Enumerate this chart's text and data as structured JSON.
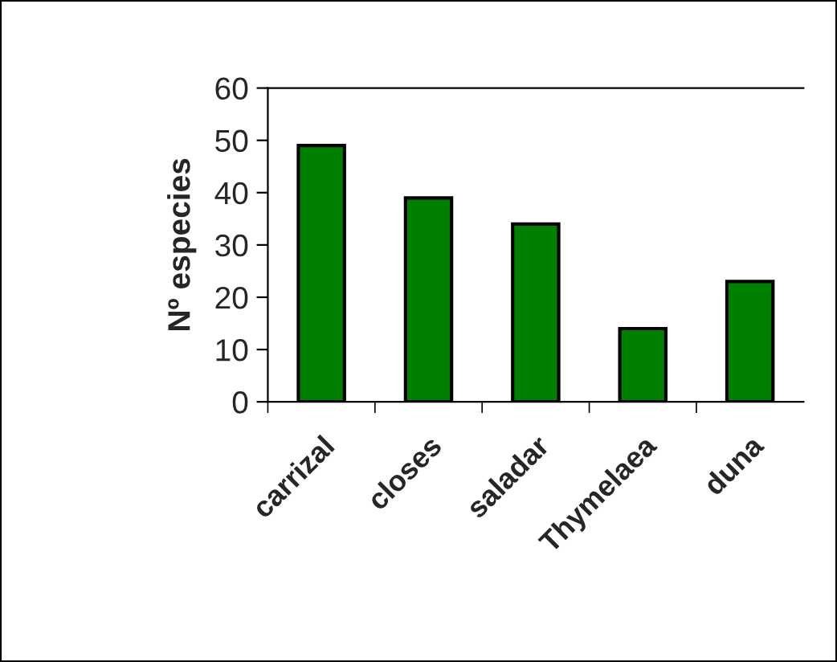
{
  "chart_data": {
    "type": "bar",
    "ylabel": "Nº especies",
    "categories": [
      "carrizal",
      "closes",
      "saladar",
      "Thymelaea",
      "duna"
    ],
    "values": [
      49,
      39,
      34,
      14,
      23
    ],
    "color": "#008000",
    "ylim": [
      0,
      60
    ],
    "yticks": [
      0,
      10,
      20,
      30,
      40,
      50,
      60
    ],
    "grid": false
  }
}
